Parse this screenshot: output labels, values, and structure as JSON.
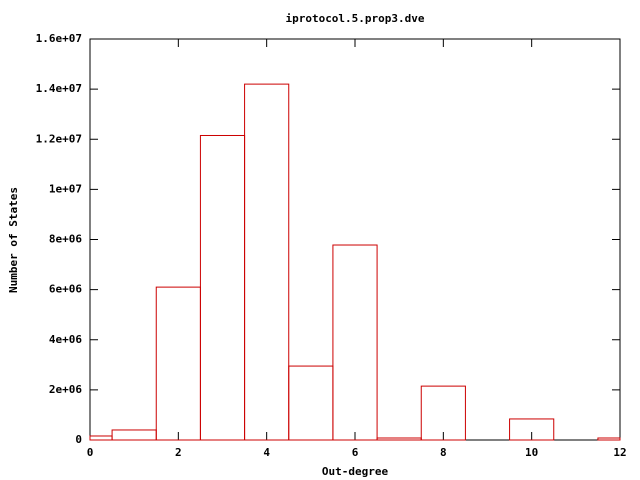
{
  "chart_data": {
    "type": "bar",
    "title": "iprotocol.5.prop3.dve",
    "x_label": "Out-degree",
    "y_label": "Number of States",
    "x": [
      0,
      1,
      2,
      3,
      4,
      5,
      6,
      7,
      8,
      9,
      10,
      11,
      12
    ],
    "values": [
      160000,
      400000,
      6100000,
      12150000,
      14200000,
      2950000,
      7780000,
      80000,
      2150000,
      0,
      840000,
      0,
      80000
    ],
    "color": "#cc0000",
    "xlim": [
      0,
      12
    ],
    "xticks": [
      0,
      2,
      4,
      6,
      8,
      10,
      12
    ],
    "ylim": [
      0,
      16000000
    ],
    "yticks": [
      0,
      {
        "value": 2000000,
        "label": "2e+06"
      },
      {
        "value": 4000000,
        "label": "4e+06"
      },
      {
        "value": 6000000,
        "label": "6e+06"
      },
      {
        "value": 8000000,
        "label": "8e+06"
      },
      {
        "value": 10000000,
        "label": "1e+07"
      },
      {
        "value": 12000000,
        "label": "1.2e+07"
      },
      {
        "value": 14000000,
        "label": "1.4e+07"
      },
      {
        "value": 16000000,
        "label": "1.6e+07"
      }
    ]
  }
}
